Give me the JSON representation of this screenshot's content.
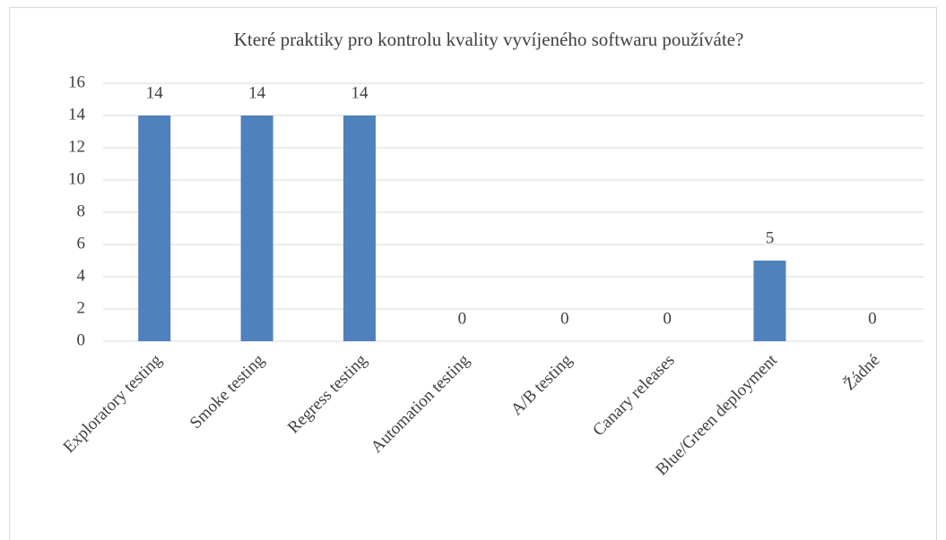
{
  "chart_data": {
    "type": "bar",
    "title": "Které praktiky pro kontrolu kvality vyvíjeného softwaru používáte?",
    "categories": [
      "Exploratory testing",
      "Smoke testing",
      "Regress testing",
      "Automation testing",
      "A/B testing",
      "Canary releases",
      "Blue/Green deployment",
      "Žádné"
    ],
    "values": [
      14,
      14,
      14,
      0,
      0,
      0,
      5,
      0
    ],
    "color": "#4f81bd",
    "ylim": [
      0,
      16
    ],
    "yticks": [
      0,
      2,
      4,
      6,
      8,
      10,
      12,
      14,
      16
    ],
    "grid": true
  }
}
